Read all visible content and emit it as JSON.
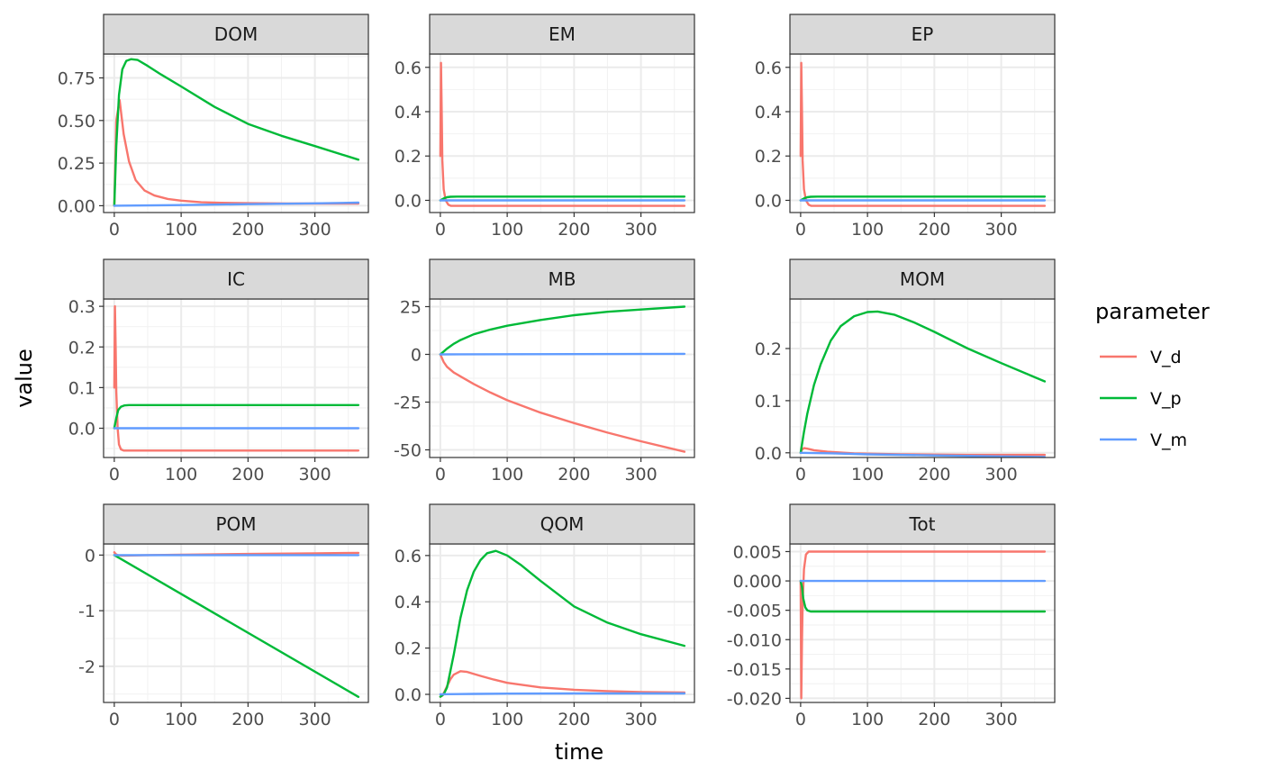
{
  "axis_labels": {
    "x": "time",
    "y": "value"
  },
  "legend": {
    "title": "parameter",
    "entries": [
      {
        "name": "V_d",
        "color": "#F8766D"
      },
      {
        "name": "V_p",
        "color": "#00BA38"
      },
      {
        "name": "V_m",
        "color": "#619CFF"
      }
    ]
  },
  "chart_data": [
    {
      "type": "line",
      "panel": "DOM",
      "xlim": [
        -16,
        380
      ],
      "ylim": [
        -0.04,
        0.89
      ],
      "xticks": [
        0,
        100,
        200,
        300
      ],
      "xtick_labels": [
        "0",
        "100",
        "200",
        "300"
      ],
      "yticks": [
        0,
        0.25,
        0.5,
        0.75
      ],
      "ytick_labels": [
        "0.00",
        "0.25",
        "0.50",
        "0.75"
      ],
      "series": [
        {
          "name": "V_d",
          "color": "#F8766D",
          "x": [
            0,
            3,
            8,
            14,
            22,
            32,
            45,
            60,
            80,
            100,
            130,
            160,
            200,
            260,
            300,
            365
          ],
          "y": [
            0,
            0.5,
            0.62,
            0.42,
            0.26,
            0.15,
            0.09,
            0.06,
            0.04,
            0.03,
            0.02,
            0.017,
            0.015,
            0.013,
            0.013,
            0.013
          ]
        },
        {
          "name": "V_p",
          "color": "#00BA38",
          "x": [
            0,
            3,
            7,
            12,
            18,
            25,
            35,
            50,
            70,
            100,
            150,
            200,
            250,
            300,
            365
          ],
          "y": [
            0,
            0.35,
            0.65,
            0.8,
            0.85,
            0.86,
            0.855,
            0.82,
            0.77,
            0.7,
            0.58,
            0.48,
            0.41,
            0.35,
            0.27
          ]
        },
        {
          "name": "V_m",
          "color": "#619CFF",
          "x": [
            0,
            50,
            100,
            200,
            300,
            365
          ],
          "y": [
            0,
            0.002,
            0.004,
            0.009,
            0.014,
            0.018
          ]
        }
      ]
    },
    {
      "type": "line",
      "panel": "EM",
      "xlim": [
        -16,
        380
      ],
      "ylim": [
        -0.055,
        0.66
      ],
      "xticks": [
        0,
        100,
        200,
        300
      ],
      "xtick_labels": [
        "0",
        "100",
        "200",
        "300"
      ],
      "yticks": [
        0,
        0.2,
        0.4,
        0.6
      ],
      "ytick_labels": [
        "0.0",
        "0.2",
        "0.4",
        "0.6"
      ],
      "series": [
        {
          "name": "V_d",
          "color": "#F8766D",
          "x": [
            0,
            1,
            2,
            3,
            5,
            8,
            12,
            16,
            365
          ],
          "y": [
            0.2,
            0.62,
            0.4,
            0.18,
            0.05,
            0.0,
            -0.02,
            -0.025,
            -0.025
          ]
        },
        {
          "name": "V_p",
          "color": "#00BA38",
          "x": [
            0,
            3,
            6,
            10,
            15,
            25,
            365
          ],
          "y": [
            0,
            0.005,
            0.01,
            0.014,
            0.016,
            0.017,
            0.017
          ]
        },
        {
          "name": "V_m",
          "color": "#619CFF",
          "x": [
            0,
            365
          ],
          "y": [
            0,
            0
          ]
        }
      ]
    },
    {
      "type": "line",
      "panel": "EP",
      "xlim": [
        -16,
        380
      ],
      "ylim": [
        -0.055,
        0.66
      ],
      "xticks": [
        0,
        100,
        200,
        300
      ],
      "xtick_labels": [
        "0",
        "100",
        "200",
        "300"
      ],
      "yticks": [
        0,
        0.2,
        0.4,
        0.6
      ],
      "ytick_labels": [
        "0.0",
        "0.2",
        "0.4",
        "0.6"
      ],
      "series": [
        {
          "name": "V_d",
          "color": "#F8766D",
          "x": [
            0,
            1,
            2,
            3,
            5,
            8,
            12,
            16,
            365
          ],
          "y": [
            0.2,
            0.62,
            0.4,
            0.18,
            0.05,
            0.0,
            -0.02,
            -0.025,
            -0.025
          ]
        },
        {
          "name": "V_p",
          "color": "#00BA38",
          "x": [
            0,
            3,
            6,
            10,
            15,
            25,
            365
          ],
          "y": [
            0,
            0.005,
            0.01,
            0.014,
            0.016,
            0.017,
            0.017
          ]
        },
        {
          "name": "V_m",
          "color": "#619CFF",
          "x": [
            0,
            365
          ],
          "y": [
            0,
            0
          ]
        }
      ]
    },
    {
      "type": "line",
      "panel": "IC",
      "xlim": [
        -16,
        380
      ],
      "ylim": [
        -0.072,
        0.318
      ],
      "xticks": [
        0,
        100,
        200,
        300
      ],
      "xtick_labels": [
        "0",
        "100",
        "200",
        "300"
      ],
      "yticks": [
        0,
        0.1,
        0.2,
        0.3
      ],
      "ytick_labels": [
        "0.0",
        "0.1",
        "0.2",
        "0.3"
      ],
      "series": [
        {
          "name": "V_d",
          "color": "#F8766D",
          "x": [
            0,
            1,
            2,
            3,
            5,
            7,
            10,
            14,
            20,
            365
          ],
          "y": [
            0.1,
            0.3,
            0.2,
            0.09,
            0.0,
            -0.04,
            -0.052,
            -0.055,
            -0.055,
            -0.055
          ]
        },
        {
          "name": "V_p",
          "color": "#00BA38",
          "x": [
            0,
            3,
            6,
            10,
            15,
            22,
            365
          ],
          "y": [
            0,
            0.025,
            0.045,
            0.053,
            0.056,
            0.057,
            0.057
          ]
        },
        {
          "name": "V_m",
          "color": "#619CFF",
          "x": [
            0,
            365
          ],
          "y": [
            0,
            0
          ]
        }
      ]
    },
    {
      "type": "line",
      "panel": "MB",
      "xlim": [
        -16,
        380
      ],
      "ylim": [
        -54,
        29
      ],
      "xticks": [
        0,
        100,
        200,
        300
      ],
      "xtick_labels": [
        "0",
        "100",
        "200",
        "300"
      ],
      "yticks": [
        -50,
        -25,
        0,
        25
      ],
      "ytick_labels": [
        "-50",
        "-25",
        "0",
        "25"
      ],
      "series": [
        {
          "name": "V_d",
          "color": "#F8766D",
          "x": [
            0,
            5,
            10,
            20,
            30,
            50,
            75,
            100,
            150,
            200,
            250,
            300,
            365
          ],
          "y": [
            0,
            -4,
            -6.5,
            -9.5,
            -11.5,
            -15.5,
            -20,
            -24,
            -30.5,
            -36,
            -41,
            -45.5,
            -51
          ]
        },
        {
          "name": "V_p",
          "color": "#00BA38",
          "x": [
            0,
            5,
            10,
            20,
            30,
            50,
            75,
            100,
            150,
            200,
            250,
            300,
            365
          ],
          "y": [
            0,
            1.5,
            3,
            5.5,
            7.5,
            10.5,
            13,
            15,
            18,
            20.5,
            22.3,
            23.5,
            25
          ]
        },
        {
          "name": "V_m",
          "color": "#619CFF",
          "x": [
            0,
            365
          ],
          "y": [
            0,
            0.3
          ]
        }
      ]
    },
    {
      "type": "line",
      "panel": "MOM",
      "xlim": [
        -16,
        380
      ],
      "ylim": [
        -0.009,
        0.295
      ],
      "xticks": [
        0,
        100,
        200,
        300
      ],
      "xtick_labels": [
        "0",
        "100",
        "200",
        "300"
      ],
      "yticks": [
        0,
        0.1,
        0.2
      ],
      "ytick_labels": [
        "0.0",
        "0.1",
        "0.2"
      ],
      "series": [
        {
          "name": "V_d",
          "color": "#F8766D",
          "x": [
            0,
            2,
            5,
            10,
            20,
            40,
            80,
            150,
            250,
            365
          ],
          "y": [
            0,
            0.006,
            0.009,
            0.008,
            0.005,
            0.002,
            -0.001,
            -0.003,
            -0.004,
            -0.004
          ]
        },
        {
          "name": "V_p",
          "color": "#00BA38",
          "x": [
            0,
            5,
            10,
            20,
            30,
            45,
            60,
            80,
            100,
            115,
            140,
            170,
            200,
            250,
            300,
            365
          ],
          "y": [
            0,
            0.04,
            0.075,
            0.13,
            0.17,
            0.215,
            0.243,
            0.262,
            0.27,
            0.271,
            0.265,
            0.25,
            0.232,
            0.2,
            0.172,
            0.137
          ]
        },
        {
          "name": "V_m",
          "color": "#619CFF",
          "x": [
            0,
            50,
            100,
            200,
            300,
            365
          ],
          "y": [
            0,
            -0.001,
            -0.003,
            -0.005,
            -0.007,
            -0.008
          ]
        }
      ]
    },
    {
      "type": "line",
      "panel": "POM",
      "xlim": [
        -16,
        380
      ],
      "ylim": [
        -2.65,
        0.2
      ],
      "xticks": [
        0,
        100,
        200,
        300
      ],
      "xtick_labels": [
        "0",
        "100",
        "200",
        "300"
      ],
      "yticks": [
        -2,
        -1,
        0
      ],
      "ytick_labels": [
        "-2",
        "-1",
        "0"
      ],
      "series": [
        {
          "name": "V_d",
          "color": "#F8766D",
          "x": [
            0,
            2,
            5,
            10,
            50,
            100,
            200,
            300,
            365
          ],
          "y": [
            0.05,
            0.02,
            0,
            -0.01,
            0,
            0.005,
            0.02,
            0.03,
            0.04
          ]
        },
        {
          "name": "V_p",
          "color": "#00BA38",
          "x": [
            0,
            10,
            365
          ],
          "y": [
            0,
            -0.07,
            -2.55
          ]
        },
        {
          "name": "V_m",
          "color": "#619CFF",
          "x": [
            0,
            365
          ],
          "y": [
            0,
            0
          ]
        }
      ]
    },
    {
      "type": "line",
      "panel": "QOM",
      "xlim": [
        -16,
        380
      ],
      "ylim": [
        -0.035,
        0.65
      ],
      "xticks": [
        0,
        100,
        200,
        300
      ],
      "xtick_labels": [
        "0",
        "100",
        "200",
        "300"
      ],
      "yticks": [
        0,
        0.2,
        0.4,
        0.6
      ],
      "ytick_labels": [
        "0.0",
        "0.2",
        "0.4",
        "0.6"
      ],
      "series": [
        {
          "name": "V_d",
          "color": "#F8766D",
          "x": [
            0,
            3,
            6,
            10,
            15,
            20,
            30,
            40,
            60,
            80,
            100,
            150,
            200,
            250,
            300,
            365
          ],
          "y": [
            -0.01,
            -0.005,
            0.01,
            0.035,
            0.065,
            0.085,
            0.1,
            0.097,
            0.08,
            0.064,
            0.05,
            0.03,
            0.02,
            0.014,
            0.01,
            0.008
          ]
        },
        {
          "name": "V_p",
          "color": "#00BA38",
          "x": [
            0,
            5,
            10,
            20,
            30,
            40,
            50,
            60,
            70,
            83,
            100,
            120,
            150,
            200,
            250,
            300,
            365
          ],
          "y": [
            -0.01,
            0,
            0.03,
            0.17,
            0.33,
            0.45,
            0.53,
            0.58,
            0.61,
            0.62,
            0.6,
            0.56,
            0.49,
            0.38,
            0.31,
            0.26,
            0.21
          ]
        },
        {
          "name": "V_m",
          "color": "#619CFF",
          "x": [
            0,
            10,
            50,
            100,
            200,
            300,
            365
          ],
          "y": [
            0,
            0.001,
            0.002,
            0.003,
            0.004,
            0.004,
            0.004
          ]
        }
      ]
    },
    {
      "type": "line",
      "panel": "Tot",
      "xlim": [
        -16,
        380
      ],
      "ylim": [
        -0.0207,
        0.0063
      ],
      "xticks": [
        0,
        100,
        200,
        300
      ],
      "xtick_labels": [
        "0",
        "100",
        "200",
        "300"
      ],
      "yticks": [
        0.005,
        0,
        -0.005,
        -0.01,
        -0.015,
        -0.02
      ],
      "ytick_labels": [
        "0.005",
        "0.000",
        "-0.005",
        "-0.010",
        "-0.015",
        "-0.020"
      ],
      "series": [
        {
          "name": "V_d",
          "color": "#F8766D",
          "x": [
            0,
            1,
            2,
            3,
            5,
            8,
            12,
            18,
            25,
            365
          ],
          "y": [
            0,
            -0.02,
            -0.01,
            -0.004,
            0.002,
            0.0045,
            0.005,
            0.005,
            0.005,
            0.005
          ]
        },
        {
          "name": "V_p",
          "color": "#00BA38",
          "x": [
            0,
            2,
            4,
            7,
            10,
            15,
            25,
            365
          ],
          "y": [
            0,
            -0.001,
            -0.003,
            -0.0045,
            -0.005,
            -0.0052,
            -0.0052,
            -0.0052
          ]
        },
        {
          "name": "V_m",
          "color": "#619CFF",
          "x": [
            0,
            365
          ],
          "y": [
            0,
            0
          ]
        }
      ]
    }
  ]
}
